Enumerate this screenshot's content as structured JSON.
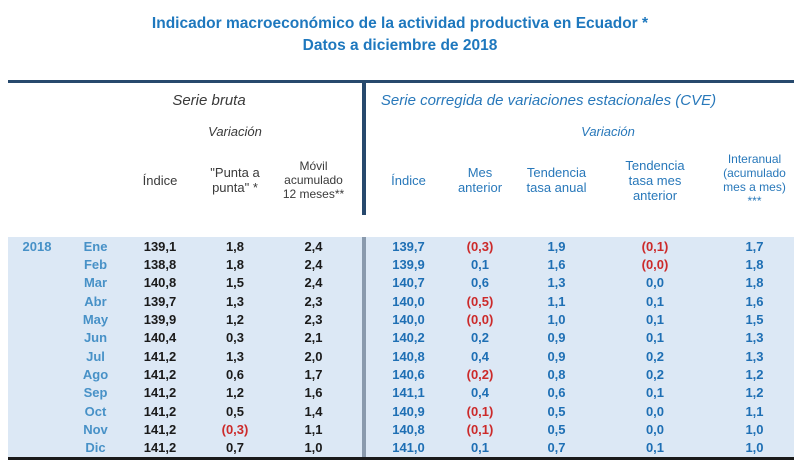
{
  "title": {
    "line1": "Indicador macroeconómico de la actividad  productiva en Ecuador *",
    "line2": "Datos a diciembre de 2018"
  },
  "table": {
    "year": "2018",
    "left_section": {
      "title": "Serie bruta",
      "variation_label": "Variación",
      "columns": [
        "Índice",
        "\"Punta a punta\" *",
        "Móvil acumulado 12 meses**"
      ]
    },
    "right_section": {
      "title": "Serie corregida de variaciones estacionales (CVE)",
      "variation_label": "Variación",
      "columns": [
        "Índice",
        "Mes anterior",
        "Tendencia tasa anual",
        "Tendencia tasa mes anterior",
        "Interanual (acumulado mes a mes) ***"
      ]
    },
    "rows": [
      {
        "month": "Ene",
        "bruta": [
          "139,1",
          "1,8",
          "2,4"
        ],
        "cve": [
          "139,7",
          "(0,3)",
          "1,9",
          "(0,1)",
          "1,7"
        ]
      },
      {
        "month": "Feb",
        "bruta": [
          "138,8",
          "1,8",
          "2,4"
        ],
        "cve": [
          "139,9",
          "0,1",
          "1,6",
          "(0,0)",
          "1,8"
        ]
      },
      {
        "month": "Mar",
        "bruta": [
          "140,8",
          "1,5",
          "2,4"
        ],
        "cve": [
          "140,7",
          "0,6",
          "1,3",
          "0,0",
          "1,8"
        ]
      },
      {
        "month": "Abr",
        "bruta": [
          "139,7",
          "1,3",
          "2,3"
        ],
        "cve": [
          "140,0",
          "(0,5)",
          "1,1",
          "0,1",
          "1,6"
        ]
      },
      {
        "month": "May",
        "bruta": [
          "139,9",
          "1,2",
          "2,3"
        ],
        "cve": [
          "140,0",
          "(0,0)",
          "1,0",
          "0,1",
          "1,5"
        ]
      },
      {
        "month": "Jun",
        "bruta": [
          "140,4",
          "0,3",
          "2,1"
        ],
        "cve": [
          "140,2",
          "0,2",
          "0,9",
          "0,1",
          "1,3"
        ]
      },
      {
        "month": "Jul",
        "bruta": [
          "141,2",
          "1,3",
          "2,0"
        ],
        "cve": [
          "140,8",
          "0,4",
          "0,9",
          "0,2",
          "1,3"
        ]
      },
      {
        "month": "Ago",
        "bruta": [
          "141,2",
          "0,6",
          "1,7"
        ],
        "cve": [
          "140,6",
          "(0,2)",
          "0,8",
          "0,2",
          "1,2"
        ]
      },
      {
        "month": "Sep",
        "bruta": [
          "141,2",
          "1,2",
          "1,6"
        ],
        "cve": [
          "141,1",
          "0,4",
          "0,6",
          "0,1",
          "1,2"
        ]
      },
      {
        "month": "Oct",
        "bruta": [
          "141,2",
          "0,5",
          "1,4"
        ],
        "cve": [
          "140,9",
          "(0,1)",
          "0,5",
          "0,0",
          "1,1"
        ]
      },
      {
        "month": "Nov",
        "bruta": [
          "141,2",
          "(0,3)",
          "1,1"
        ],
        "cve": [
          "140,8",
          "(0,1)",
          "0,5",
          "0,0",
          "1,0"
        ]
      },
      {
        "month": "Dic",
        "bruta": [
          "141,2",
          "0,7",
          "1,0"
        ],
        "cve": [
          "141,0",
          "0,1",
          "0,7",
          "0,1",
          "1,0"
        ]
      }
    ]
  },
  "colors": {
    "title_blue": "#1E78BE",
    "header_blue": "#2878BA",
    "header_dark": "#3A3A3A",
    "value_blue": "#1E6FB4",
    "value_black": "#1A1A1A",
    "negative_red": "#CC2A2A",
    "month_blue": "#4791C7",
    "data_background": "#DCE8F5",
    "rule_navy": "#27496D",
    "divider_gray": "#8A9AAD"
  }
}
